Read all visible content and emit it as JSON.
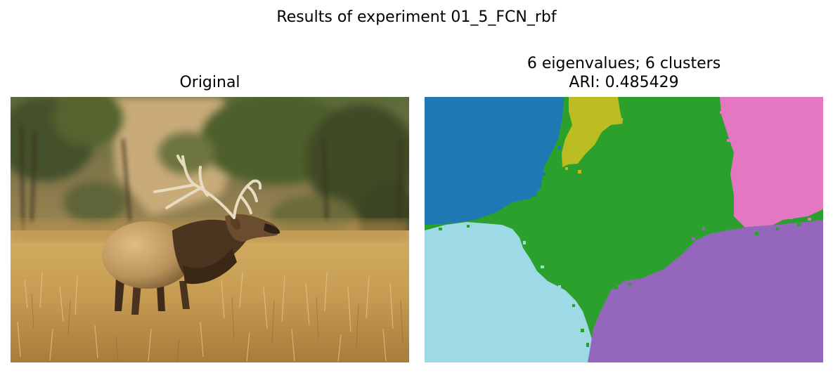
{
  "figure": {
    "suptitle": "Results of experiment 01_5_FCN_rbf"
  },
  "panels": {
    "original": {
      "title": "Original"
    },
    "segmentation": {
      "title_line1": "6 eigenvalues; 6 clusters",
      "title_line2": "ARI: 0.485429",
      "cluster_colors": [
        "#1f77b4",
        "#2ca02c",
        "#bcbd22",
        "#e377c2",
        "#9edae5",
        "#9467bd"
      ]
    }
  }
}
